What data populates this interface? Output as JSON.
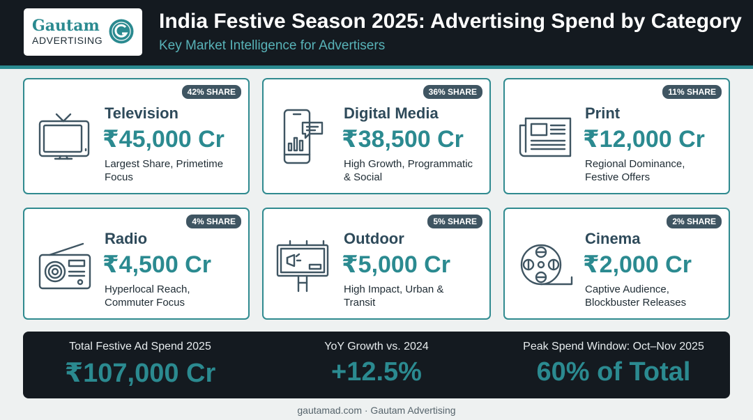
{
  "header": {
    "logo_word": "Gautam",
    "logo_sub": "ADVERTISING",
    "title": "India Festive Season 2025: Advertising Spend by Category",
    "subtitle": "Key Market Intelligence for Advertisers"
  },
  "cards": [
    {
      "name": "Television",
      "value": "₹45,000 Cr",
      "desc1": "Largest Share, Primetime",
      "desc2": "Focus",
      "badge": "42% SHARE",
      "icon": "television-icon"
    },
    {
      "name": "Digital Media",
      "value": "₹38,500 Cr",
      "desc1": "High Growth, Programmatic",
      "desc2": "& Social",
      "badge": "36% SHARE",
      "icon": "smartphone-chart-icon"
    },
    {
      "name": "Print",
      "value": "₹12,000 Cr",
      "desc1": "Regional Dominance,",
      "desc2": "Festive Offers",
      "badge": "11% SHARE",
      "icon": "newspaper-icon"
    },
    {
      "name": "Radio",
      "value": "₹4,500 Cr",
      "desc1": "Hyperlocal Reach,",
      "desc2": "Commuter Focus",
      "badge": "4% SHARE",
      "icon": "radio-icon"
    },
    {
      "name": "Outdoor",
      "value": "₹5,000 Cr",
      "desc1": "High Impact, Urban &",
      "desc2": "Transit",
      "badge": "5% SHARE",
      "icon": "billboard-icon"
    },
    {
      "name": "Cinema",
      "value": "₹2,000 Cr",
      "desc1": "Captive Audience,",
      "desc2": "Blockbuster Releases",
      "badge": "2% SHARE",
      "icon": "film-reel-icon"
    }
  ],
  "summary": {
    "total_label": "Total Festive Ad Spend 2025",
    "total_value": "₹107,000 Cr",
    "growth_label": "YoY Growth vs. 2024",
    "growth_value": "+12.5%",
    "peak_label": "Peak Spend Window: Oct–Nov 2025",
    "peak_value": "60% of Total"
  },
  "credit": "gautamad.com · Gautam Advertising",
  "colors": {
    "accent": "#2b8a90",
    "dark": "#141a20",
    "badge": "#3f5562"
  }
}
